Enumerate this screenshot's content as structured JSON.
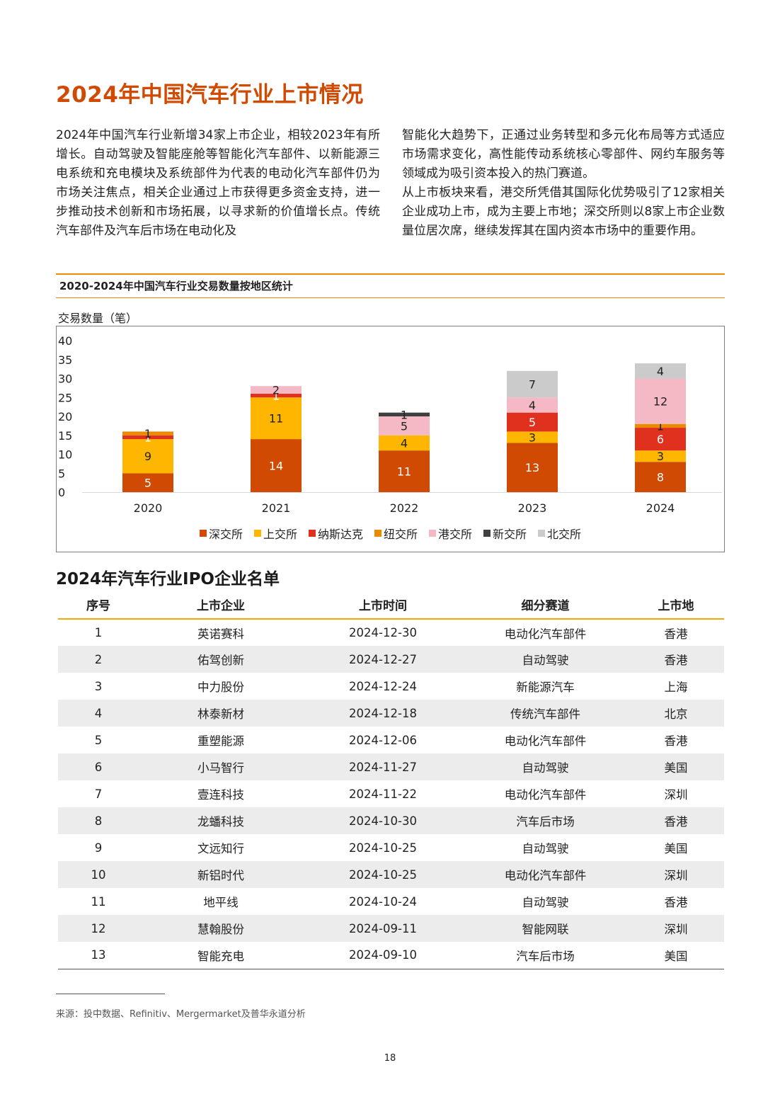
{
  "page": {
    "title": "2024年中国汽车行业上市情况",
    "intro_left": "2024年中国汽车行业新增34家上市企业，相较2023年有所增长。自动驾驶及智能座舱等智能化汽车部件、以新能源三电系统和充电模块及系统部件为代表的电动化汽车部件仍为市场关注焦点，相关企业通过上市获得更多资金支持，进一步推动技术创新和市场拓展，以寻求新的价值增长点。传统汽车部件及汽车后市场在电动化及",
    "intro_right_1": "智能化大趋势下，正通过业务转型和多元化布局等方式适应市场需求变化，高性能传动系统核心零部件、网约车服务等领域成为吸引资本投入的热门赛道。",
    "intro_right_2": "从上市板块来看，港交所凭借其国际化优势吸引了12家相关企业成功上市，成为主要上市地；深交所则以8家上市企业数量位居次席，继续发挥其在国内资本市场中的重要作用。",
    "section_title": "2024年汽车行业IPO企业名单",
    "source": "来源：投中数据、Refinitiv、Mergermarket及普华永道分析",
    "page_number": "18"
  },
  "chart_data": {
    "type": "bar",
    "stacked": true,
    "title": "2020-2024年中国汽车行业交易数量按地区统计",
    "ylabel": "交易数量（笔）",
    "xlabel": "",
    "ylim": [
      0,
      40
    ],
    "yticks": [
      0,
      5,
      10,
      15,
      20,
      25,
      30,
      35,
      40
    ],
    "grid": false,
    "legend_position": "bottom",
    "categories": [
      "2020",
      "2021",
      "2022",
      "2023",
      "2024"
    ],
    "series": [
      {
        "name": "深交所",
        "color": "#d04a02",
        "label_color": "#ffffff",
        "values": [
          5,
          14,
          11,
          13,
          8
        ]
      },
      {
        "name": "上交所",
        "color": "#ffb600",
        "label_color": "#222222",
        "values": [
          9,
          11,
          4,
          3,
          3
        ]
      },
      {
        "name": "纳斯达克",
        "color": "#e0301e",
        "label_color": "#ffffff",
        "values": [
          1,
          1,
          0,
          5,
          6
        ]
      },
      {
        "name": "纽交所",
        "color": "#eb8c00",
        "label_color": "#222222",
        "values": [
          1,
          0,
          0,
          0,
          1
        ]
      },
      {
        "name": "港交所",
        "color": "#f4b9c4",
        "label_color": "#222222",
        "values": [
          0,
          2,
          5,
          4,
          12
        ]
      },
      {
        "name": "新交所",
        "color": "#404040",
        "label_color": "#222222",
        "values": [
          0,
          0,
          1,
          0,
          0
        ]
      },
      {
        "name": "北交所",
        "color": "#cbcbcb",
        "label_color": "#222222",
        "values": [
          0,
          0,
          0,
          7,
          4
        ]
      }
    ]
  },
  "table": {
    "headers": [
      "序号",
      "上市企业",
      "上市时间",
      "细分赛道",
      "上市地"
    ],
    "rows": [
      [
        "1",
        "英诺赛科",
        "2024-12-30",
        "电动化汽车部件",
        "香港"
      ],
      [
        "2",
        "佑驾创新",
        "2024-12-27",
        "自动驾驶",
        "香港"
      ],
      [
        "3",
        "中力股份",
        "2024-12-24",
        "新能源汽车",
        "上海"
      ],
      [
        "4",
        "林泰新材",
        "2024-12-18",
        "传统汽车部件",
        "北京"
      ],
      [
        "5",
        "重塑能源",
        "2024-12-06",
        "电动化汽车部件",
        "香港"
      ],
      [
        "6",
        "小马智行",
        "2024-11-27",
        "自动驾驶",
        "美国"
      ],
      [
        "7",
        "壹连科技",
        "2024-11-22",
        "电动化汽车部件",
        "深圳"
      ],
      [
        "8",
        "龙蟠科技",
        "2024-10-30",
        "汽车后市场",
        "香港"
      ],
      [
        "9",
        "文远知行",
        "2024-10-25",
        "自动驾驶",
        "美国"
      ],
      [
        "10",
        "新铝时代",
        "2024-10-25",
        "电动化汽车部件",
        "深圳"
      ],
      [
        "11",
        "地平线",
        "2024-10-24",
        "自动驾驶",
        "香港"
      ],
      [
        "12",
        "慧翰股份",
        "2024-09-11",
        "智能网联",
        "深圳"
      ],
      [
        "13",
        "智能充电",
        "2024-09-10",
        "汽车后市场",
        "美国"
      ]
    ]
  }
}
